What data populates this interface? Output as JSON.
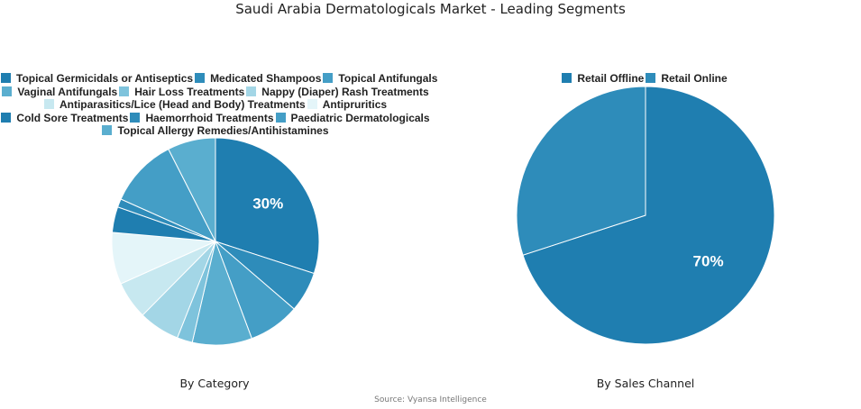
{
  "title": "Saudi Arabia Dermatologicals Market - Leading Segments",
  "source": "Source: Vyansa Intelligence",
  "chart_data": [
    {
      "type": "pie",
      "title": "By Category",
      "legend_position": "top",
      "categories": [
        "Topical Germicidals or Antiseptics",
        "Medicated Shampoos",
        "Topical Antifungals",
        "Vaginal Antifungals",
        "Hair Loss Treatments",
        "Nappy (Diaper) Rash Treatments",
        "Antiparasitics/Lice (Head and Body) Treatments",
        "Antipruritics",
        "Cold Sore Treatments",
        "Haemorrhoid Treatments",
        "Paediatric Dermatologicals",
        "Topical Allergy Remedies/Antihistamines"
      ],
      "values": [
        30,
        6.3,
        8,
        9.3,
        2.4,
        6.4,
        5.9,
        8.1,
        4,
        1.3,
        10.8,
        7.5
      ],
      "colors": [
        "#1f7eb0",
        "#2e8cba",
        "#449ec6",
        "#5aaecf",
        "#7ec3dc",
        "#a3d6e6",
        "#c7e8f0",
        "#e4f5f9",
        "#1f7eb0",
        "#2e8cba",
        "#449ec6",
        "#5aaecf"
      ],
      "data_labels": [
        "30%",
        "",
        "",
        "",
        "",
        "",
        "",
        "",
        "",
        "",
        "",
        ""
      ]
    },
    {
      "type": "pie",
      "title": "By Sales Channel",
      "legend_position": "top",
      "categories": [
        "Retail Offline",
        "Retail Online"
      ],
      "values": [
        70,
        30
      ],
      "colors": [
        "#1f7eb0",
        "#2e8cba"
      ],
      "data_labels": [
        "70%",
        ""
      ]
    }
  ],
  "legend_left_rows": [
    [
      0,
      1,
      2
    ],
    [
      3,
      4,
      5
    ],
    [
      6,
      7
    ],
    [
      8,
      9,
      10
    ],
    [
      11
    ]
  ],
  "captions": {
    "left": "By Category",
    "right": "By Sales Channel"
  }
}
